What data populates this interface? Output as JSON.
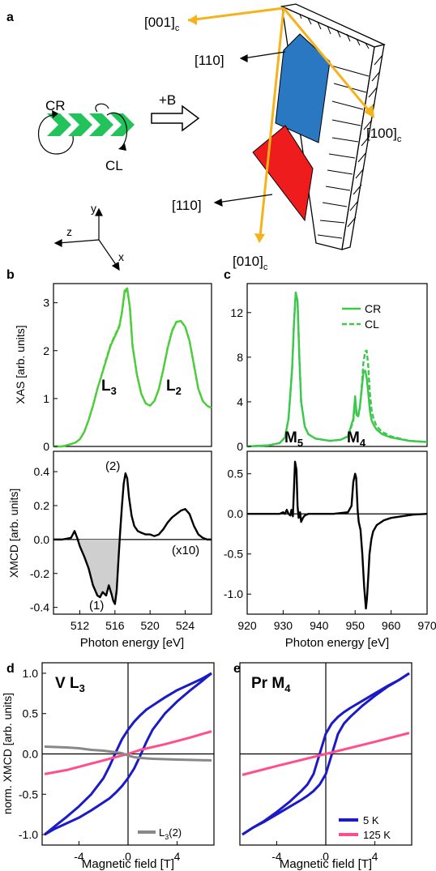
{
  "panel_labels": {
    "a": "a",
    "b": "b",
    "c": "c",
    "d": "d",
    "e": "e"
  },
  "schematic": {
    "axis_001": "[001]",
    "axis_100": "[100]",
    "axis_010": "[010]",
    "sub_c": "c",
    "plane_110_top": "[110]",
    "plane_110_bottom": "[110]",
    "cr_label": "CR",
    "cl_label": "CL",
    "field_label": "+B",
    "coord_y": "y",
    "coord_z": "z",
    "coord_x": "x",
    "colors": {
      "beam": "#22c35a",
      "axes": "#f5b21b",
      "upper_plane": "#2a78c2",
      "lower_plane": "#ee1c1c"
    }
  },
  "panel_b": {
    "xas_ylabel": "XAS [arb. units]",
    "xmcd_ylabel": "XMCD [arb. units]",
    "xlabel": "Photon energy [eV]",
    "edge_L3": "L",
    "edge_L3_sub": "3",
    "edge_L2": "L",
    "edge_L2_sub": "2",
    "ann_1": "(1)",
    "ann_2": "(2)",
    "ann_x10": "(x10)"
  },
  "panel_c": {
    "xlabel": "Photon energy [eV]",
    "edge_M5": "M",
    "edge_M5_sub": "5",
    "edge_M4": "M",
    "edge_M4_sub": "4",
    "legend_cr": "CR",
    "legend_cl": "CL"
  },
  "panel_d": {
    "title_main": "V L",
    "title_sub": "3",
    "ylabel": "norm. XMCD [arb. units]",
    "xlabel": "Magnetic field [T]",
    "legend_main": "L",
    "legend_sub": "3",
    "legend_suffix": "(2)"
  },
  "panel_e": {
    "title_main": "Pr M",
    "title_sub": "4",
    "xlabel": "Magnetic field [T]",
    "legend_5k": "5 K",
    "legend_125k": "125 K"
  },
  "chart_data": [
    {
      "id": "b-xas",
      "type": "line",
      "xlim": [
        509,
        527
      ],
      "ylim": [
        0,
        3.4
      ],
      "xticks": [],
      "yticks": [
        0,
        1,
        2,
        3
      ],
      "series": [
        {
          "name": "CR",
          "color": "#4ccd3a",
          "x": [
            509,
            510,
            511,
            511.5,
            512,
            512.5,
            513,
            513.5,
            514,
            514.5,
            515,
            515.5,
            516,
            516.5,
            516.8,
            517.1,
            517.4,
            517.7,
            518,
            518.5,
            519,
            519.5,
            520,
            520.5,
            521,
            521.5,
            522,
            522.5,
            523,
            523.5,
            524,
            524.5,
            525,
            525.5,
            526,
            526.5,
            527
          ],
          "y": [
            0,
            0,
            0.05,
            0.08,
            0.15,
            0.3,
            0.55,
            0.85,
            1.2,
            1.5,
            1.8,
            2.1,
            2.3,
            2.5,
            2.8,
            3.25,
            3.3,
            2.9,
            2.1,
            1.5,
            1.1,
            0.9,
            0.85,
            0.95,
            1.2,
            1.6,
            2.05,
            2.4,
            2.6,
            2.62,
            2.5,
            2.2,
            1.7,
            1.2,
            0.95,
            0.85,
            0.8
          ]
        },
        {
          "name": "CL",
          "color": "#4ccd3a",
          "dash": true,
          "x": [
            509,
            510,
            511,
            511.5,
            512,
            512.5,
            513,
            513.5,
            514,
            514.5,
            515,
            515.5,
            516,
            516.5,
            516.8,
            517.1,
            517.4,
            517.7,
            518,
            518.5,
            519,
            519.5,
            520,
            520.5,
            521,
            521.5,
            522,
            522.5,
            523,
            523.5,
            524,
            524.5,
            525,
            525.5,
            526,
            526.5,
            527
          ],
          "y": [
            0,
            0,
            0.05,
            0.08,
            0.15,
            0.3,
            0.55,
            0.85,
            1.2,
            1.5,
            1.82,
            2.12,
            2.32,
            2.52,
            2.8,
            3.2,
            3.28,
            2.92,
            2.12,
            1.5,
            1.1,
            0.9,
            0.85,
            0.95,
            1.2,
            1.6,
            2.06,
            2.42,
            2.6,
            2.62,
            2.5,
            2.2,
            1.7,
            1.2,
            0.95,
            0.85,
            0.8
          ]
        }
      ]
    },
    {
      "id": "b-xmcd",
      "type": "line",
      "xlim": [
        509,
        527
      ],
      "ylim": [
        -0.44,
        0.52
      ],
      "xticks": [
        512,
        516,
        520,
        524
      ],
      "yticks": [
        -0.4,
        -0.2,
        0.0,
        0.2,
        0.4
      ],
      "series": [
        {
          "name": "XMCD",
          "color": "#000000",
          "x": [
            509,
            510,
            511,
            511.4,
            511.7,
            512,
            512.5,
            513,
            513.5,
            514,
            514.3,
            514.6,
            515,
            515.3,
            515.6,
            515.8,
            516,
            516.2,
            516.4,
            516.6,
            516.8,
            517,
            517.2,
            517.4,
            517.6,
            517.9,
            518.2,
            518.6,
            519,
            519.5,
            520,
            520.5,
            521,
            521.5,
            522,
            522.5,
            523,
            523.5,
            524,
            524.5,
            525,
            525.5,
            526,
            526.5,
            527
          ],
          "y": [
            0,
            0,
            0.01,
            0.05,
            0.01,
            -0.04,
            -0.1,
            -0.17,
            -0.27,
            -0.33,
            -0.34,
            -0.31,
            -0.33,
            -0.27,
            -0.32,
            -0.36,
            -0.38,
            -0.3,
            -0.12,
            0.05,
            0.2,
            0.33,
            0.39,
            0.36,
            0.25,
            0.14,
            0.08,
            0.05,
            0.04,
            0.03,
            0.03,
            0.02,
            0.03,
            0.06,
            0.1,
            0.13,
            0.15,
            0.17,
            0.18,
            0.15,
            0.08,
            0.03,
            0.01,
            0,
            0
          ]
        }
      ]
    },
    {
      "id": "c-xas",
      "type": "line",
      "xlim": [
        920,
        970
      ],
      "ylim": [
        0,
        14.6
      ],
      "xticks": [],
      "yticks": [
        0,
        4,
        8,
        12
      ],
      "series": [
        {
          "name": "CR",
          "color": "#3cc84a",
          "x": [
            920,
            926,
            929,
            930.5,
            931.5,
            932.5,
            933,
            933.5,
            934,
            934.5,
            935,
            936,
            937,
            939,
            943,
            946,
            948,
            949.5,
            950,
            950.4,
            950.8,
            951.3,
            951.8,
            952.3,
            952.8,
            953.2,
            953.6,
            954.1,
            954.6,
            955.2,
            956,
            957.5,
            960,
            965,
            970
          ],
          "y": [
            0,
            0.1,
            0.3,
            0.8,
            2.5,
            7,
            11,
            13.8,
            13,
            8,
            4,
            1.8,
            1.1,
            0.7,
            0.5,
            0.6,
            0.9,
            2.5,
            4.5,
            3,
            2.7,
            3.5,
            5,
            6.6,
            6.8,
            6.2,
            5,
            3.2,
            2.3,
            1.9,
            1.5,
            1.1,
            0.8,
            0.5,
            0.4
          ]
        },
        {
          "name": "CL",
          "color": "#3cc84a",
          "dash": true,
          "x": [
            920,
            926,
            929,
            930.5,
            931.5,
            932.5,
            933,
            933.5,
            934,
            934.5,
            935,
            936,
            937,
            939,
            943,
            946,
            948,
            949.5,
            950,
            950.4,
            950.8,
            951.3,
            951.8,
            952.3,
            952.8,
            953.2,
            953.6,
            954.1,
            954.6,
            955.2,
            956,
            957.5,
            960,
            965,
            970
          ],
          "y": [
            0,
            0.1,
            0.3,
            0.8,
            2.5,
            7,
            11,
            13.8,
            13,
            8,
            4,
            1.8,
            1.1,
            0.7,
            0.5,
            0.6,
            0.9,
            2.3,
            4,
            2.8,
            2.6,
            3.4,
            5.2,
            7.5,
            8.5,
            8.6,
            7.4,
            4.8,
            3.2,
            2.4,
            1.8,
            1.3,
            0.9,
            0.5,
            0.4
          ]
        }
      ]
    },
    {
      "id": "c-xmcd",
      "type": "line",
      "xlim": [
        920,
        970
      ],
      "ylim": [
        -1.25,
        0.78
      ],
      "xticks": [
        920,
        930,
        940,
        950,
        960,
        970
      ],
      "yticks": [
        -1.0,
        -0.5,
        0.0,
        0.5
      ],
      "series": [
        {
          "name": "XMCD",
          "color": "#000000",
          "x": [
            920,
            926,
            929,
            930,
            930.5,
            931,
            931.5,
            932,
            932.3,
            932.7,
            933,
            933.3,
            933.7,
            934,
            934.3,
            934.7,
            935,
            935.5,
            936,
            937,
            940,
            944,
            948,
            949,
            949.5,
            950,
            950.3,
            950.7,
            951,
            951.5,
            952,
            952.5,
            953,
            953.3,
            953.7,
            954,
            954.5,
            955,
            956,
            958,
            960,
            963,
            966,
            970
          ],
          "y": [
            0,
            0,
            0,
            0.02,
            0,
            0.05,
            0,
            -0.02,
            0.05,
            -0.03,
            0.3,
            0.65,
            0.55,
            0.1,
            -0.05,
            0.02,
            -0.1,
            -0.05,
            -0.02,
            0,
            0,
            0,
            0.02,
            0.1,
            0.4,
            0.5,
            0.45,
            0.05,
            -0.1,
            -0.2,
            -0.5,
            -0.9,
            -1.18,
            -1.05,
            -0.75,
            -0.5,
            -0.32,
            -0.22,
            -0.14,
            -0.08,
            -0.05,
            -0.03,
            -0.01,
            0
          ]
        }
      ]
    },
    {
      "id": "d-loop",
      "type": "line",
      "xlim": [
        -7,
        7
      ],
      "ylim": [
        -1.13,
        1.13
      ],
      "xticks": [
        -4,
        0,
        4
      ],
      "yticks": [
        -1.0,
        -0.5,
        0.0,
        0.5,
        1.0
      ],
      "series": [
        {
          "name": "5 K",
          "color": "#1a1ac8",
          "loop": true,
          "x": [
            -6.8,
            -6,
            -5,
            -4,
            -3,
            -2,
            -1.5,
            -1,
            -0.5,
            0,
            0.5,
            1,
            1.5,
            2,
            3,
            4,
            5,
            6,
            6.8
          ],
          "y_up": [
            -1,
            -0.93,
            -0.86,
            -0.79,
            -0.7,
            -0.6,
            -0.55,
            -0.48,
            -0.4,
            -0.3,
            -0.18,
            -0.02,
            0.15,
            0.3,
            0.5,
            0.65,
            0.78,
            0.9,
            1.0
          ],
          "y_down": [
            -1,
            -0.9,
            -0.78,
            -0.65,
            -0.5,
            -0.3,
            -0.15,
            0.02,
            0.18,
            0.3,
            0.4,
            0.48,
            0.55,
            0.6,
            0.7,
            0.79,
            0.86,
            0.93,
            1.0
          ]
        },
        {
          "name": "125 K",
          "color": "#ff4f8a",
          "x": [
            -6.8,
            -5,
            -3,
            -1,
            0,
            1,
            3,
            5,
            6.8
          ],
          "y": [
            -0.25,
            -0.2,
            -0.12,
            -0.04,
            0,
            0.05,
            0.12,
            0.2,
            0.28
          ]
        },
        {
          "name": "L3(2)",
          "color": "#888888",
          "x": [
            -6.8,
            -5,
            -4,
            -3,
            -2,
            -1,
            -0.5,
            0,
            0.5,
            1,
            2,
            4,
            6.8
          ],
          "y": [
            0.09,
            0.08,
            0.07,
            0.05,
            0.04,
            0.02,
            0.01,
            -0.02,
            -0.04,
            -0.05,
            -0.06,
            -0.07,
            -0.08
          ]
        }
      ]
    },
    {
      "id": "e-loop",
      "type": "line",
      "xlim": [
        -7,
        7
      ],
      "ylim": [
        -1.13,
        1.13
      ],
      "xticks": [
        -4,
        0,
        4
      ],
      "yticks": [],
      "series": [
        {
          "name": "5 K",
          "color": "#1a1ac8",
          "loop": true,
          "x": [
            -6.8,
            -6,
            -5,
            -4,
            -3,
            -2,
            -1.5,
            -1,
            -0.5,
            0,
            0.5,
            1,
            1.5,
            2,
            3,
            4,
            5,
            6,
            6.8
          ],
          "y_up": [
            -1,
            -0.92,
            -0.84,
            -0.75,
            -0.66,
            -0.57,
            -0.52,
            -0.46,
            -0.38,
            -0.25,
            0,
            0.25,
            0.38,
            0.46,
            0.6,
            0.72,
            0.83,
            0.92,
            1.0
          ],
          "y_down": [
            -1,
            -0.92,
            -0.83,
            -0.72,
            -0.6,
            -0.46,
            -0.38,
            -0.25,
            0,
            0.25,
            0.38,
            0.46,
            0.52,
            0.57,
            0.66,
            0.75,
            0.84,
            0.92,
            1.0
          ]
        },
        {
          "name": "125 K",
          "color": "#ff4f8a",
          "x": [
            -6.8,
            -4,
            0,
            4,
            6.8
          ],
          "y": [
            -0.26,
            -0.15,
            0,
            0.15,
            0.26
          ]
        }
      ]
    }
  ]
}
